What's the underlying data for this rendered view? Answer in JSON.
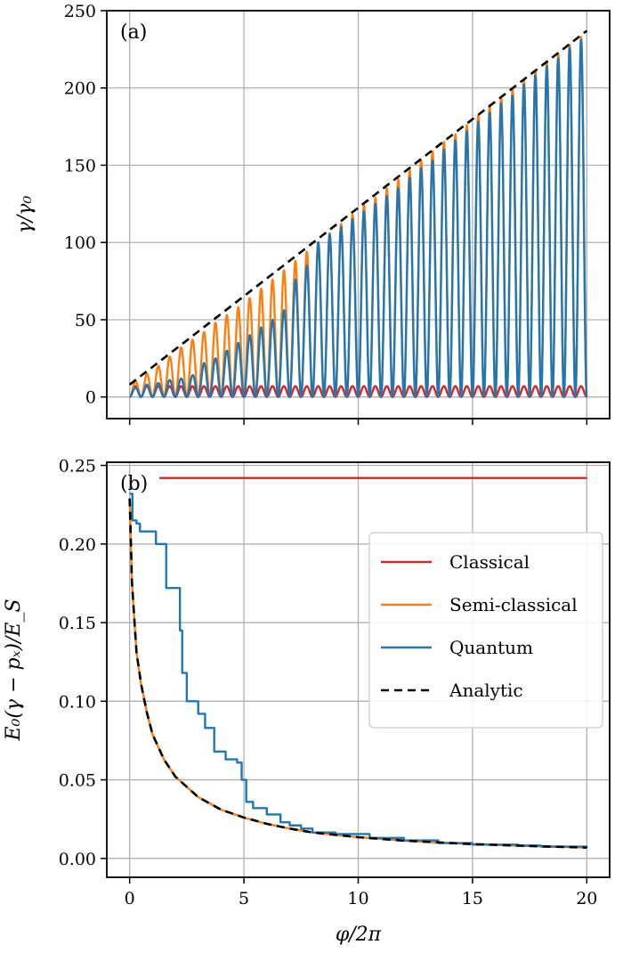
{
  "colors": {
    "classical": "#d62728",
    "semi_classical": "#ff7f0e",
    "quantum": "#1f77b4",
    "analytic": "#000000",
    "grid": "#b0b0b0"
  },
  "chart_data": [
    {
      "type": "line",
      "panel_label": "(a)",
      "xlabel": "",
      "ylabel": "γ/γ₀",
      "xlim": [
        -1,
        21
      ],
      "ylim": [
        -14,
        250
      ],
      "yticks": [
        0,
        50,
        100,
        150,
        200,
        250
      ],
      "xticks": [
        0,
        5,
        10,
        15,
        20
      ],
      "show_x_tick_labels": false,
      "grid": true,
      "oscillation": {
        "period": 0.5,
        "x_start": 0,
        "x_end": 20
      },
      "series": [
        {
          "name": "Classical",
          "kind": "oscillating",
          "peaks": [
            {
              "x": 0.25,
              "y": 7
            },
            {
              "x": 20,
              "y": 7
            }
          ]
        },
        {
          "name": "Semi-classical",
          "kind": "oscillating",
          "peaks": [
            {
              "x": 0.25,
              "y": 10
            },
            {
              "x": 0.75,
              "y": 15
            },
            {
              "x": 1.25,
              "y": 20
            },
            {
              "x": 1.75,
              "y": 26
            },
            {
              "x": 2.25,
              "y": 32
            },
            {
              "x": 2.75,
              "y": 37
            },
            {
              "x": 3.25,
              "y": 42
            },
            {
              "x": 3.75,
              "y": 48
            },
            {
              "x": 4.25,
              "y": 53
            },
            {
              "x": 4.75,
              "y": 58
            },
            {
              "x": 5.25,
              "y": 64
            },
            {
              "x": 5.75,
              "y": 70
            },
            {
              "x": 6.25,
              "y": 76
            },
            {
              "x": 6.75,
              "y": 82
            },
            {
              "x": 7.25,
              "y": 88
            },
            {
              "x": 7.75,
              "y": 94
            },
            {
              "x": 8.25,
              "y": 100
            },
            {
              "x": 8.75,
              "y": 106
            },
            {
              "x": 9.25,
              "y": 112
            },
            {
              "x": 9.75,
              "y": 118
            },
            {
              "x": 10.25,
              "y": 124
            },
            {
              "x": 10.75,
              "y": 129
            },
            {
              "x": 11.25,
              "y": 135
            },
            {
              "x": 11.75,
              "y": 141
            },
            {
              "x": 12.25,
              "y": 147
            },
            {
              "x": 12.75,
              "y": 153
            },
            {
              "x": 13.25,
              "y": 159
            },
            {
              "x": 13.75,
              "y": 165
            },
            {
              "x": 14.25,
              "y": 170
            },
            {
              "x": 14.75,
              "y": 176
            },
            {
              "x": 15.25,
              "y": 182
            },
            {
              "x": 15.75,
              "y": 188
            },
            {
              "x": 16.25,
              "y": 194
            },
            {
              "x": 16.75,
              "y": 199
            },
            {
              "x": 17.25,
              "y": 205
            },
            {
              "x": 17.75,
              "y": 211
            },
            {
              "x": 18.25,
              "y": 217
            },
            {
              "x": 18.75,
              "y": 222
            },
            {
              "x": 19.25,
              "y": 228
            },
            {
              "x": 19.75,
              "y": 233
            }
          ]
        },
        {
          "name": "Quantum",
          "kind": "oscillating",
          "peaks": [
            {
              "x": 0.25,
              "y": 6
            },
            {
              "x": 0.75,
              "y": 8
            },
            {
              "x": 1.25,
              "y": 9
            },
            {
              "x": 1.75,
              "y": 11
            },
            {
              "x": 2.25,
              "y": 12
            },
            {
              "x": 2.75,
              "y": 14
            },
            {
              "x": 3.25,
              "y": 22
            },
            {
              "x": 3.75,
              "y": 25
            },
            {
              "x": 4.25,
              "y": 30
            },
            {
              "x": 4.75,
              "y": 35
            },
            {
              "x": 5.25,
              "y": 40
            },
            {
              "x": 5.75,
              "y": 45
            },
            {
              "x": 6.25,
              "y": 50
            },
            {
              "x": 6.75,
              "y": 56
            },
            {
              "x": 7.25,
              "y": 76
            },
            {
              "x": 7.75,
              "y": 85
            },
            {
              "x": 8.25,
              "y": 100
            },
            {
              "x": 8.75,
              "y": 105
            },
            {
              "x": 9.25,
              "y": 110
            },
            {
              "x": 9.75,
              "y": 115
            },
            {
              "x": 10.25,
              "y": 120
            },
            {
              "x": 10.75,
              "y": 125
            },
            {
              "x": 11.25,
              "y": 130
            },
            {
              "x": 11.75,
              "y": 135
            },
            {
              "x": 12.25,
              "y": 142
            },
            {
              "x": 12.75,
              "y": 148
            },
            {
              "x": 13.25,
              "y": 153
            },
            {
              "x": 13.75,
              "y": 160
            },
            {
              "x": 14.25,
              "y": 166
            },
            {
              "x": 14.75,
              "y": 172
            },
            {
              "x": 15.25,
              "y": 178
            },
            {
              "x": 15.75,
              "y": 184
            },
            {
              "x": 16.25,
              "y": 190
            },
            {
              "x": 16.75,
              "y": 195
            },
            {
              "x": 17.25,
              "y": 202
            },
            {
              "x": 17.75,
              "y": 208
            },
            {
              "x": 18.25,
              "y": 214
            },
            {
              "x": 18.75,
              "y": 219
            },
            {
              "x": 19.25,
              "y": 226
            },
            {
              "x": 19.75,
              "y": 231
            }
          ]
        },
        {
          "name": "Analytic",
          "kind": "dashed",
          "points": [
            {
              "x": 0,
              "y": 8
            },
            {
              "x": 20,
              "y": 237
            }
          ]
        }
      ]
    },
    {
      "type": "line",
      "panel_label": "(b)",
      "xlabel": "φ/2π",
      "ylabel": "E₀(γ − pₓ)/E_S",
      "xlim": [
        -1,
        21
      ],
      "ylim": [
        -0.012,
        0.252
      ],
      "yticks": [
        0.0,
        0.05,
        0.1,
        0.15,
        0.2,
        0.25
      ],
      "ytick_labels": [
        "0.00",
        "0.05",
        "0.10",
        "0.15",
        "0.20",
        "0.25"
      ],
      "xticks": [
        0,
        5,
        10,
        15,
        20
      ],
      "grid": true,
      "legend": {
        "position": "center-right",
        "entries": [
          "Classical",
          "Semi-classical",
          "Quantum",
          "Analytic"
        ]
      },
      "series": [
        {
          "name": "Classical",
          "kind": "solid",
          "points": [
            {
              "x": 1.3,
              "y": 0.242
            },
            {
              "x": 20,
              "y": 0.242
            }
          ]
        },
        {
          "name": "Semi-classical",
          "kind": "solid",
          "points": [
            {
              "x": 0.0,
              "y": 0.229
            },
            {
              "x": 0.05,
              "y": 0.203
            },
            {
              "x": 0.1,
              "y": 0.176
            },
            {
              "x": 0.2,
              "y": 0.153
            },
            {
              "x": 0.3,
              "y": 0.131
            },
            {
              "x": 0.5,
              "y": 0.111
            },
            {
              "x": 0.75,
              "y": 0.093
            },
            {
              "x": 1.0,
              "y": 0.079
            },
            {
              "x": 1.5,
              "y": 0.063
            },
            {
              "x": 2.0,
              "y": 0.052
            },
            {
              "x": 3.0,
              "y": 0.039
            },
            {
              "x": 4.0,
              "y": 0.031
            },
            {
              "x": 5.0,
              "y": 0.026
            },
            {
              "x": 6.0,
              "y": 0.022
            },
            {
              "x": 7.0,
              "y": 0.019
            },
            {
              "x": 8.0,
              "y": 0.0165
            },
            {
              "x": 10.0,
              "y": 0.0135
            },
            {
              "x": 12.0,
              "y": 0.0113
            },
            {
              "x": 15.0,
              "y": 0.0091
            },
            {
              "x": 17.5,
              "y": 0.0079
            },
            {
              "x": 20.0,
              "y": 0.0069
            }
          ]
        },
        {
          "name": "Quantum",
          "kind": "step",
          "points": [
            {
              "x": 0.0,
              "y": 0.232
            },
            {
              "x": 0.12,
              "y": 0.215
            },
            {
              "x": 0.3,
              "y": 0.213
            },
            {
              "x": 0.45,
              "y": 0.208
            },
            {
              "x": 1.1,
              "y": 0.208
            },
            {
              "x": 1.15,
              "y": 0.2
            },
            {
              "x": 1.55,
              "y": 0.2
            },
            {
              "x": 1.6,
              "y": 0.172
            },
            {
              "x": 2.15,
              "y": 0.172
            },
            {
              "x": 2.2,
              "y": 0.145
            },
            {
              "x": 2.3,
              "y": 0.118
            },
            {
              "x": 2.5,
              "y": 0.1
            },
            {
              "x": 3.0,
              "y": 0.092
            },
            {
              "x": 3.3,
              "y": 0.083
            },
            {
              "x": 3.7,
              "y": 0.068
            },
            {
              "x": 4.2,
              "y": 0.063
            },
            {
              "x": 4.7,
              "y": 0.061
            },
            {
              "x": 4.9,
              "y": 0.05
            },
            {
              "x": 5.1,
              "y": 0.036
            },
            {
              "x": 5.4,
              "y": 0.032
            },
            {
              "x": 6.0,
              "y": 0.028
            },
            {
              "x": 6.6,
              "y": 0.023
            },
            {
              "x": 7.0,
              "y": 0.021
            },
            {
              "x": 7.5,
              "y": 0.019
            },
            {
              "x": 8.0,
              "y": 0.0165
            },
            {
              "x": 9.0,
              "y": 0.0155
            },
            {
              "x": 10.5,
              "y": 0.013
            },
            {
              "x": 12.0,
              "y": 0.0115
            },
            {
              "x": 13.5,
              "y": 0.0098
            },
            {
              "x": 15.0,
              "y": 0.0088
            },
            {
              "x": 17.0,
              "y": 0.0082
            },
            {
              "x": 18.0,
              "y": 0.0075
            },
            {
              "x": 20.0,
              "y": 0.0068
            }
          ]
        },
        {
          "name": "Analytic",
          "kind": "dashed",
          "points": [
            {
              "x": 0.0,
              "y": 0.229
            },
            {
              "x": 0.05,
              "y": 0.203
            },
            {
              "x": 0.1,
              "y": 0.176
            },
            {
              "x": 0.2,
              "y": 0.153
            },
            {
              "x": 0.3,
              "y": 0.131
            },
            {
              "x": 0.5,
              "y": 0.111
            },
            {
              "x": 0.75,
              "y": 0.093
            },
            {
              "x": 1.0,
              "y": 0.079
            },
            {
              "x": 1.5,
              "y": 0.063
            },
            {
              "x": 2.0,
              "y": 0.052
            },
            {
              "x": 3.0,
              "y": 0.039
            },
            {
              "x": 4.0,
              "y": 0.031
            },
            {
              "x": 5.0,
              "y": 0.026
            },
            {
              "x": 6.0,
              "y": 0.022
            },
            {
              "x": 7.0,
              "y": 0.019
            },
            {
              "x": 8.0,
              "y": 0.0165
            },
            {
              "x": 10.0,
              "y": 0.0135
            },
            {
              "x": 12.0,
              "y": 0.0113
            },
            {
              "x": 15.0,
              "y": 0.0091
            },
            {
              "x": 17.5,
              "y": 0.0079
            },
            {
              "x": 20.0,
              "y": 0.0069
            }
          ]
        }
      ]
    }
  ]
}
